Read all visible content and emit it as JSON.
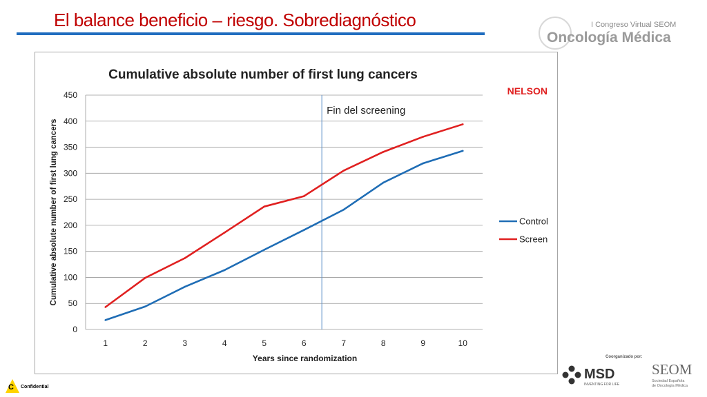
{
  "slide": {
    "title": "El balance beneficio – riesgo. Sobrediagnóstico"
  },
  "branding": {
    "event_line": "I Congreso Virtual SEOM",
    "event_name": "Oncología Médica",
    "coorganized": "Coorganizado por:",
    "msd": "MSD",
    "msd_tagline": "INVENTING FOR LIFE",
    "seom": "SEOM",
    "seom_sub1": "Sociedad Española",
    "seom_sub2": "de Oncología Médica",
    "confidential": "Confidential",
    "confidential_letter": "C"
  },
  "chart_data": {
    "type": "line",
    "title": "Cumulative absolute number of first lung cancers",
    "xlabel": "Years since randomization",
    "ylabel": "Cumulative absolute number of first lung cancers",
    "x": [
      1,
      2,
      3,
      4,
      5,
      6,
      7,
      8,
      9,
      10
    ],
    "ylim": [
      0,
      450
    ],
    "yticks": [
      0,
      50,
      100,
      150,
      200,
      250,
      300,
      350,
      400,
      450
    ],
    "grid": true,
    "legend_position": "right",
    "series": [
      {
        "name": "Control",
        "color": "#1f6db5",
        "values": [
          18,
          44,
          82,
          114,
          153,
          191,
          230,
          282,
          319,
          343
        ]
      },
      {
        "name": "Screen",
        "color": "#e02020",
        "values": [
          43,
          99,
          137,
          186,
          236,
          256,
          305,
          341,
          370,
          394
        ]
      }
    ],
    "annotations": [
      {
        "text": "Fin del screening",
        "x": 6.45
      },
      {
        "text": "NELSON"
      }
    ]
  }
}
